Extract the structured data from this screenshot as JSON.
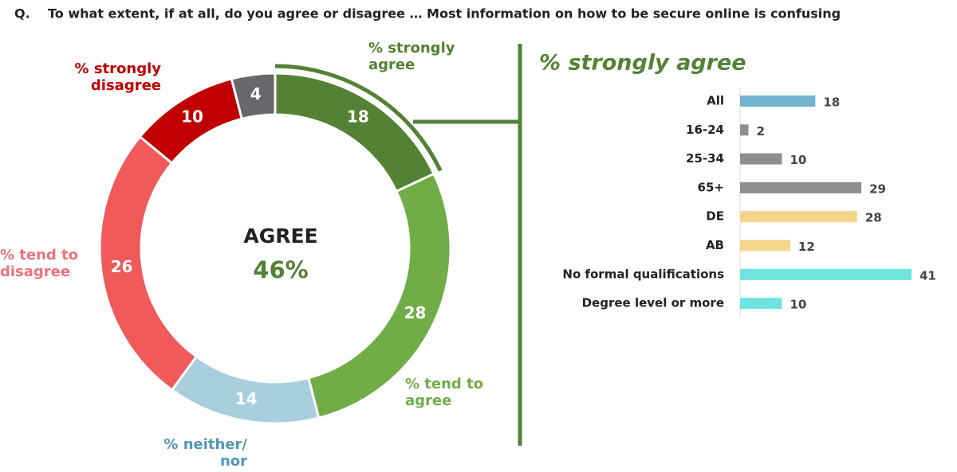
{
  "question_prefix": "Q.",
  "title": "To what extent, if at all, do you agree or disagree … Most information on how to be secure online is confusing",
  "chart_data": [
    {
      "type": "donut",
      "categories": [
        "% strongly agree",
        "% tend to agree",
        "% neither/ nor",
        "% tend to disagree",
        "% strongly disagree",
        null
      ],
      "values": [
        18,
        28,
        14,
        26,
        10,
        4
      ],
      "colors": [
        "#548235",
        "#70ad47",
        "#a9cfdf",
        "#f05a5a",
        "#c00000",
        "#67676c"
      ],
      "label_colors": [
        "#548235",
        "#70ad47",
        "#4f97b5",
        "#e8747c",
        "#c00000",
        "#67676c"
      ],
      "center_label": "AGREE",
      "center_value": "46%"
    },
    {
      "type": "hbar",
      "title": "% strongly agree",
      "categories": [
        "All",
        "16-24",
        "25-34",
        "65+",
        "DE",
        "AB",
        "No formal qualifications",
        "Degree level or more"
      ],
      "values": [
        18,
        2,
        10,
        29,
        28,
        12,
        41,
        10
      ],
      "colors": [
        "#72b3cf",
        "#8e8e8e",
        "#8e8e8e",
        "#8e8e8e",
        "#f6d68c",
        "#f6d68c",
        "#6fe3dd",
        "#6fe3dd"
      ]
    }
  ]
}
